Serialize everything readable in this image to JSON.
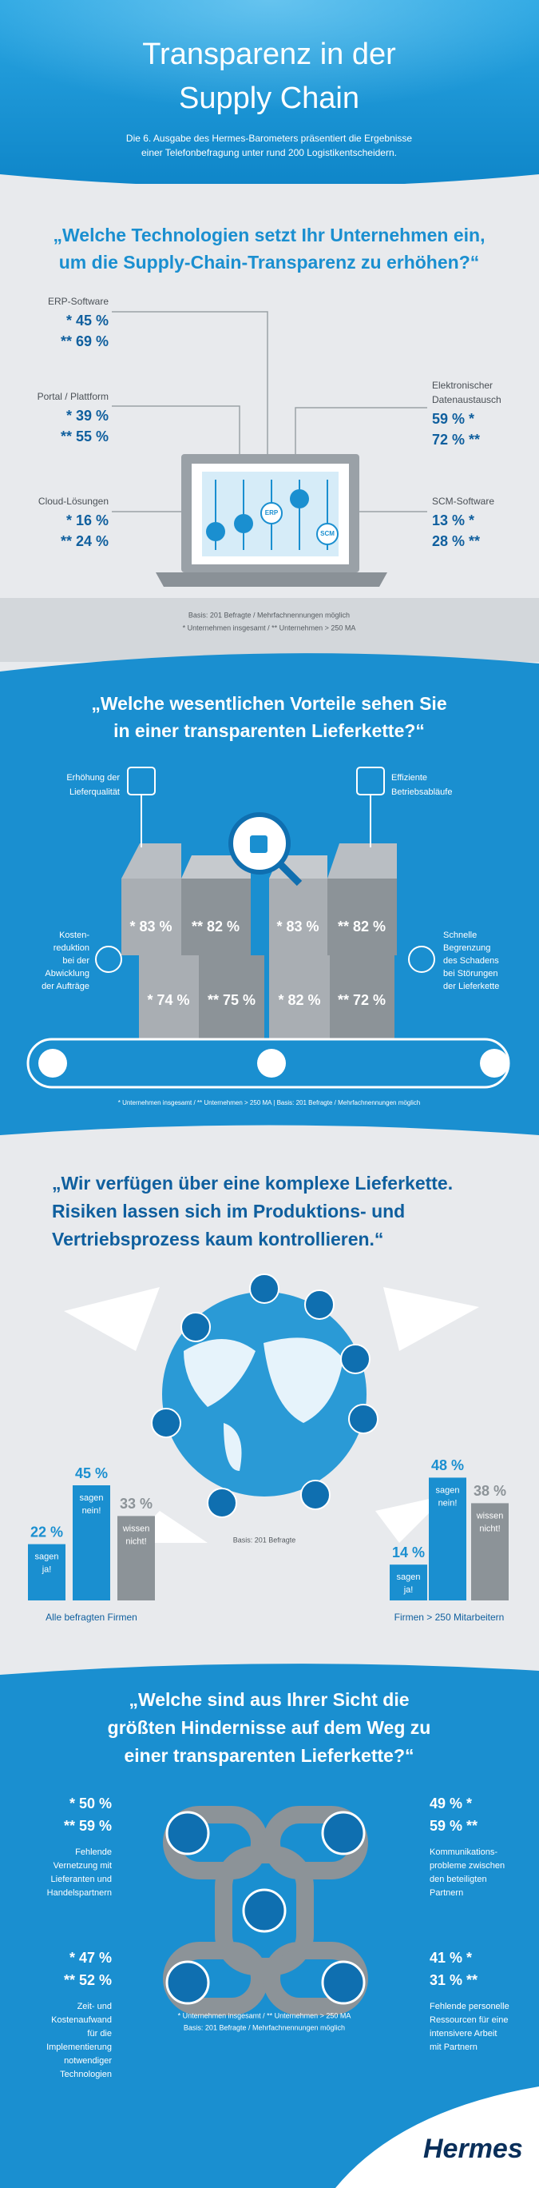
{
  "header": {
    "title": [
      "Transparenz in der",
      "Supply Chain"
    ],
    "subtitle": [
      "Die 6. Ausgabe des Hermes-Barometers präsentiert die Ergebnisse",
      "einer Telefonbefragung unter rund 200 Logistikentscheidern."
    ]
  },
  "technologies": {
    "question": [
      "„Welche Technologien setzt Ihr Unternehmen ein,",
      "um die Supply-Chain-Transparenz zu erhöhen?“"
    ],
    "left": [
      {
        "label": [
          "ERP-Software"
        ],
        "all": "* 45 %",
        "large": "** 69 %"
      },
      {
        "label": [
          "Portal / Plattform"
        ],
        "all": "* 39 %",
        "large": "** 55 %"
      },
      {
        "label": [
          "Cloud-Lösungen"
        ],
        "all": "* 16 %",
        "large": "** 24 %"
      }
    ],
    "right": [
      {
        "label": [
          "Elektronischer",
          "Datenaustausch"
        ],
        "all": "59 % *",
        "large": "72 % **"
      },
      {
        "label": [
          "SCM-Software"
        ],
        "all": "13 % *",
        "large": "28 % **"
      }
    ],
    "device_labels": [
      "ERP",
      "SCM"
    ],
    "note": [
      "Basis: 201 Befragte / Mehrfachnennungen möglich",
      "* Unternehmen insgesamt / ** Unternehmen > 250 MA"
    ]
  },
  "advantages": {
    "question": [
      "„Welche wesentlichen Vorteile sehen Sie",
      "in einer transparenten Lieferkette?“"
    ],
    "quality": {
      "label": [
        "Erhöhung der",
        "Lieferqualität"
      ],
      "all": "* 83 %",
      "large": "** 82 %"
    },
    "efficiency": {
      "label": [
        "Effiziente",
        "Betriebsabläufe"
      ],
      "all": "* 83 %",
      "large": "** 82 %"
    },
    "costs": {
      "label": [
        "Kosten-",
        "reduktion",
        "bei der",
        "Abwicklung",
        "der Aufträge"
      ],
      "all": "* 74 %",
      "large": "** 75 %"
    },
    "damage": {
      "label": [
        "Schnelle",
        "Begrenzung",
        "des Schadens",
        "bei Störungen",
        "der Lieferkette"
      ],
      "all": "* 82 %",
      "large": "** 72 %"
    },
    "note": "* Unternehmen insgesamt / ** Unternehmen > 250 MA | Basis: 201 Befragte / Mehrfachnennungen möglich"
  },
  "complexity": {
    "question": [
      "„Wir verfügen über eine komplexe Lieferkette.",
      "Risiken lassen sich im Produktions- und",
      "Vertriebsprozess kaum kontrollieren.“"
    ],
    "groups": [
      {
        "title": "Alle befragten Firmen",
        "bars": [
          {
            "value": 22,
            "label": "22 %",
            "text": [
              "sagen",
              "ja!"
            ],
            "color": "#1a8fd0"
          },
          {
            "value": 45,
            "label": "45 %",
            "text": [
              "sagen",
              "nein!"
            ],
            "color": "#1a8fd0"
          },
          {
            "value": 33,
            "label": "33 %",
            "text": [
              "wissen",
              "nicht!"
            ],
            "color": "#8c9398"
          }
        ]
      },
      {
        "title": "Firmen > 250 Mitarbeitern",
        "bars": [
          {
            "value": 14,
            "label": "14 %",
            "text": [
              "sagen",
              "ja!"
            ],
            "color": "#1a8fd0"
          },
          {
            "value": 48,
            "label": "48 %",
            "text": [
              "sagen",
              "nein!"
            ],
            "color": "#1a8fd0"
          },
          {
            "value": 38,
            "label": "38 %",
            "text": [
              "wissen",
              "nicht!"
            ],
            "color": "#8c9398"
          }
        ]
      }
    ],
    "note": "Basis: 201 Befragte"
  },
  "obstacles": {
    "question": [
      "„Welche sind aus Ihrer Sicht die",
      "größten Hindernisse auf dem Weg zu",
      "einer transparenten Lieferkette?“"
    ],
    "items": [
      {
        "all": "* 50 %",
        "large": "** 59 %",
        "label": [
          "Fehlende",
          "Vernetzung mit",
          "Lieferanten und",
          "Handelspartnern"
        ]
      },
      {
        "all": "49 % *",
        "large": "59 % **",
        "label": [
          "Kommunikations-",
          "probleme zwischen",
          "den beteiligten",
          "Partnern"
        ]
      },
      {
        "all": "* 47 %",
        "large": "** 52 %",
        "label": [
          "Zeit- und",
          "Kostenaufwand",
          "für die",
          "Implementierung",
          "notwendiger",
          "Technologien"
        ]
      },
      {
        "all": "41 % *",
        "large": "31 % **",
        "label": [
          "Fehlende personelle",
          "Ressourcen für eine",
          "intensivere Arbeit",
          "mit Partnern"
        ]
      }
    ],
    "note": [
      "* Unternehmen insgesamt / ** Unternehmen > 250 MA",
      "Basis: 201 Befragte / Mehrfachnennungen möglich"
    ]
  },
  "footer": {
    "logo": "Hermes"
  }
}
